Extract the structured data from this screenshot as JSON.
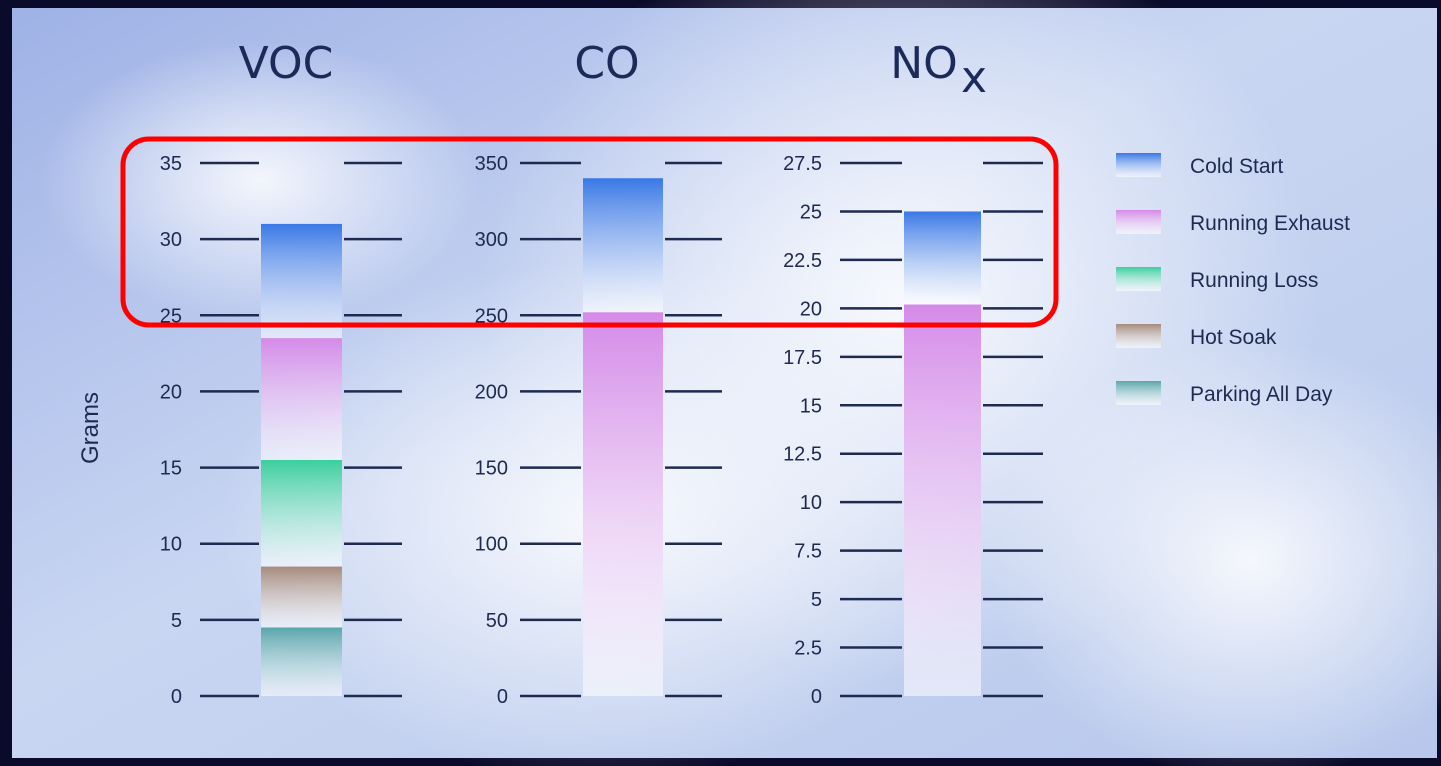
{
  "chart_data": {
    "type": "bar",
    "ylabel": "Grams",
    "legend": [
      {
        "name": "Cold Start",
        "color": "#3a78e6"
      },
      {
        "name": "Running Exhaust",
        "color": "#d58ae8"
      },
      {
        "name": "Running Loss",
        "color": "#3ccf9e"
      },
      {
        "name": "Hot Soak",
        "color": "#a58a7c"
      },
      {
        "name": "Parking All Day",
        "color": "#5aa6aa"
      }
    ],
    "panels": [
      {
        "title": "VOC",
        "title_sub": "",
        "ticks": [
          "0",
          "5",
          "10",
          "15",
          "20",
          "25",
          "30",
          "35"
        ],
        "ylim": [
          0,
          35
        ],
        "segments": [
          {
            "series": "Parking All Day",
            "value": 4.5
          },
          {
            "series": "Hot Soak",
            "value": 4.0
          },
          {
            "series": "Running Loss",
            "value": 7.0
          },
          {
            "series": "Running Exhaust",
            "value": 8.0
          },
          {
            "series": "Cold Start",
            "value": 7.5
          }
        ]
      },
      {
        "title": "CO",
        "title_sub": "",
        "ticks": [
          "0",
          "50",
          "100",
          "150",
          "200",
          "250",
          "300",
          "350"
        ],
        "ylim": [
          0,
          350
        ],
        "segments": [
          {
            "series": "Running Exhaust",
            "value": 252
          },
          {
            "series": "Cold Start",
            "value": 88
          }
        ]
      },
      {
        "title": "NO",
        "title_sub": "x",
        "ticks": [
          "0",
          "2.5",
          "5",
          "7.5",
          "10",
          "12.5",
          "15",
          "17.5",
          "20",
          "22.5",
          "25",
          "27.5"
        ],
        "ylim": [
          0,
          27.5
        ],
        "segments": [
          {
            "series": "Running Exhaust",
            "value": 20.2
          },
          {
            "series": "Cold Start",
            "value": 4.8
          }
        ]
      }
    ]
  },
  "highlight": {
    "color": "#ff0000"
  }
}
